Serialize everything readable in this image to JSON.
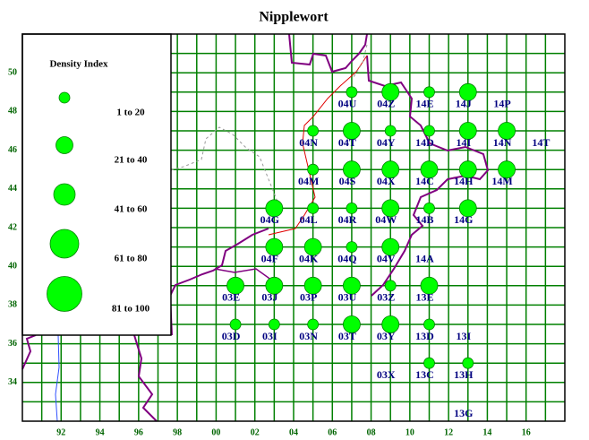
{
  "title": "Nipplewort",
  "legend": {
    "title": "Density Index",
    "classes": [
      "1 to 20",
      "21 to 40",
      "41 to 60",
      "61 to 80",
      "81 to 100"
    ]
  },
  "xlim": [
    90,
    118
  ],
  "ylim": [
    32,
    52
  ],
  "grid_step": 1,
  "xticks": [
    92,
    94,
    96,
    98,
    {
      "value": 100,
      "label": "00"
    },
    {
      "value": 102,
      "label": "02"
    },
    {
      "value": 104,
      "label": "04"
    },
    {
      "value": 106,
      "label": "06"
    },
    {
      "value": 108,
      "label": "08"
    },
    {
      "value": 110,
      "label": "10"
    },
    {
      "value": 112,
      "label": "12"
    },
    {
      "value": 114,
      "label": "14"
    },
    {
      "value": 116,
      "label": "16"
    }
  ],
  "yticks": [
    34,
    36,
    38,
    40,
    42,
    44,
    46,
    48,
    50
  ],
  "squares": [
    {
      "label": "04U",
      "x": 107,
      "y": 49,
      "class": "1 to 20"
    },
    {
      "label": "04Z",
      "x": 109,
      "y": 49,
      "class": "21 to 40"
    },
    {
      "label": "14E",
      "x": 111,
      "y": 49,
      "class": "1 to 20"
    },
    {
      "label": "14J",
      "x": 113,
      "y": 49,
      "class": "21 to 40"
    },
    {
      "label": "14P",
      "x": 115,
      "y": 49
    },
    {
      "label": "04N",
      "x": 105,
      "y": 47,
      "class": "1 to 20"
    },
    {
      "label": "04T",
      "x": 107,
      "y": 47,
      "class": "21 to 40"
    },
    {
      "label": "04Y",
      "x": 109,
      "y": 47,
      "class": "1 to 20"
    },
    {
      "label": "14D",
      "x": 111,
      "y": 47,
      "class": "1 to 20"
    },
    {
      "label": "14I",
      "x": 113,
      "y": 47,
      "class": "21 to 40"
    },
    {
      "label": "14N",
      "x": 115,
      "y": 47,
      "class": "21 to 40"
    },
    {
      "label": "14T",
      "x": 117,
      "y": 47
    },
    {
      "label": "04M",
      "x": 105,
      "y": 45,
      "class": "1 to 20"
    },
    {
      "label": "04S",
      "x": 107,
      "y": 45,
      "class": "21 to 40"
    },
    {
      "label": "04X",
      "x": 109,
      "y": 45,
      "class": "21 to 40"
    },
    {
      "label": "14C",
      "x": 111,
      "y": 45,
      "class": "21 to 40"
    },
    {
      "label": "14H",
      "x": 113,
      "y": 45,
      "class": "21 to 40"
    },
    {
      "label": "14M",
      "x": 115,
      "y": 45,
      "class": "21 to 40"
    },
    {
      "label": "04G",
      "x": 103,
      "y": 43,
      "class": "21 to 40"
    },
    {
      "label": "04L",
      "x": 105,
      "y": 43,
      "class": "1 to 20"
    },
    {
      "label": "04R",
      "x": 107,
      "y": 43,
      "class": "1 to 20"
    },
    {
      "label": "04W",
      "x": 109,
      "y": 43,
      "class": "21 to 40"
    },
    {
      "label": "14B",
      "x": 111,
      "y": 43,
      "class": "1 to 20"
    },
    {
      "label": "14G",
      "x": 113,
      "y": 43,
      "class": "21 to 40"
    },
    {
      "label": "04F",
      "x": 103,
      "y": 41,
      "class": "21 to 40"
    },
    {
      "label": "04K",
      "x": 105,
      "y": 41,
      "class": "21 to 40"
    },
    {
      "label": "04Q",
      "x": 107,
      "y": 41,
      "class": "1 to 20"
    },
    {
      "label": "04V",
      "x": 109,
      "y": 41,
      "class": "21 to 40"
    },
    {
      "label": "14A",
      "x": 111,
      "y": 41
    },
    {
      "label": "03E",
      "x": 101,
      "y": 39,
      "class": "21 to 40"
    },
    {
      "label": "03J",
      "x": 103,
      "y": 39,
      "class": "21 to 40"
    },
    {
      "label": "03P",
      "x": 105,
      "y": 39,
      "class": "21 to 40"
    },
    {
      "label": "03U",
      "x": 107,
      "y": 39,
      "class": "21 to 40"
    },
    {
      "label": "03Z",
      "x": 109,
      "y": 39,
      "class": "1 to 20"
    },
    {
      "label": "13E",
      "x": 111,
      "y": 39,
      "class": "21 to 40"
    },
    {
      "label": "03D",
      "x": 101,
      "y": 37,
      "class": "1 to 20"
    },
    {
      "label": "03I",
      "x": 103,
      "y": 37,
      "class": "1 to 20"
    },
    {
      "label": "03N",
      "x": 105,
      "y": 37,
      "class": "1 to 20"
    },
    {
      "label": "03T",
      "x": 107,
      "y": 37,
      "class": "21 to 40"
    },
    {
      "label": "03Y",
      "x": 109,
      "y": 37,
      "class": "21 to 40"
    },
    {
      "label": "13D",
      "x": 111,
      "y": 37,
      "class": "1 to 20"
    },
    {
      "label": "13I",
      "x": 113,
      "y": 37
    },
    {
      "label": "03X",
      "x": 109,
      "y": 35
    },
    {
      "label": "13C",
      "x": 111,
      "y": 35,
      "class": "1 to 20"
    },
    {
      "label": "13H",
      "x": 113,
      "y": 35,
      "class": "1 to 20"
    },
    {
      "label": "13G",
      "x": 113,
      "y": 33
    }
  ]
}
